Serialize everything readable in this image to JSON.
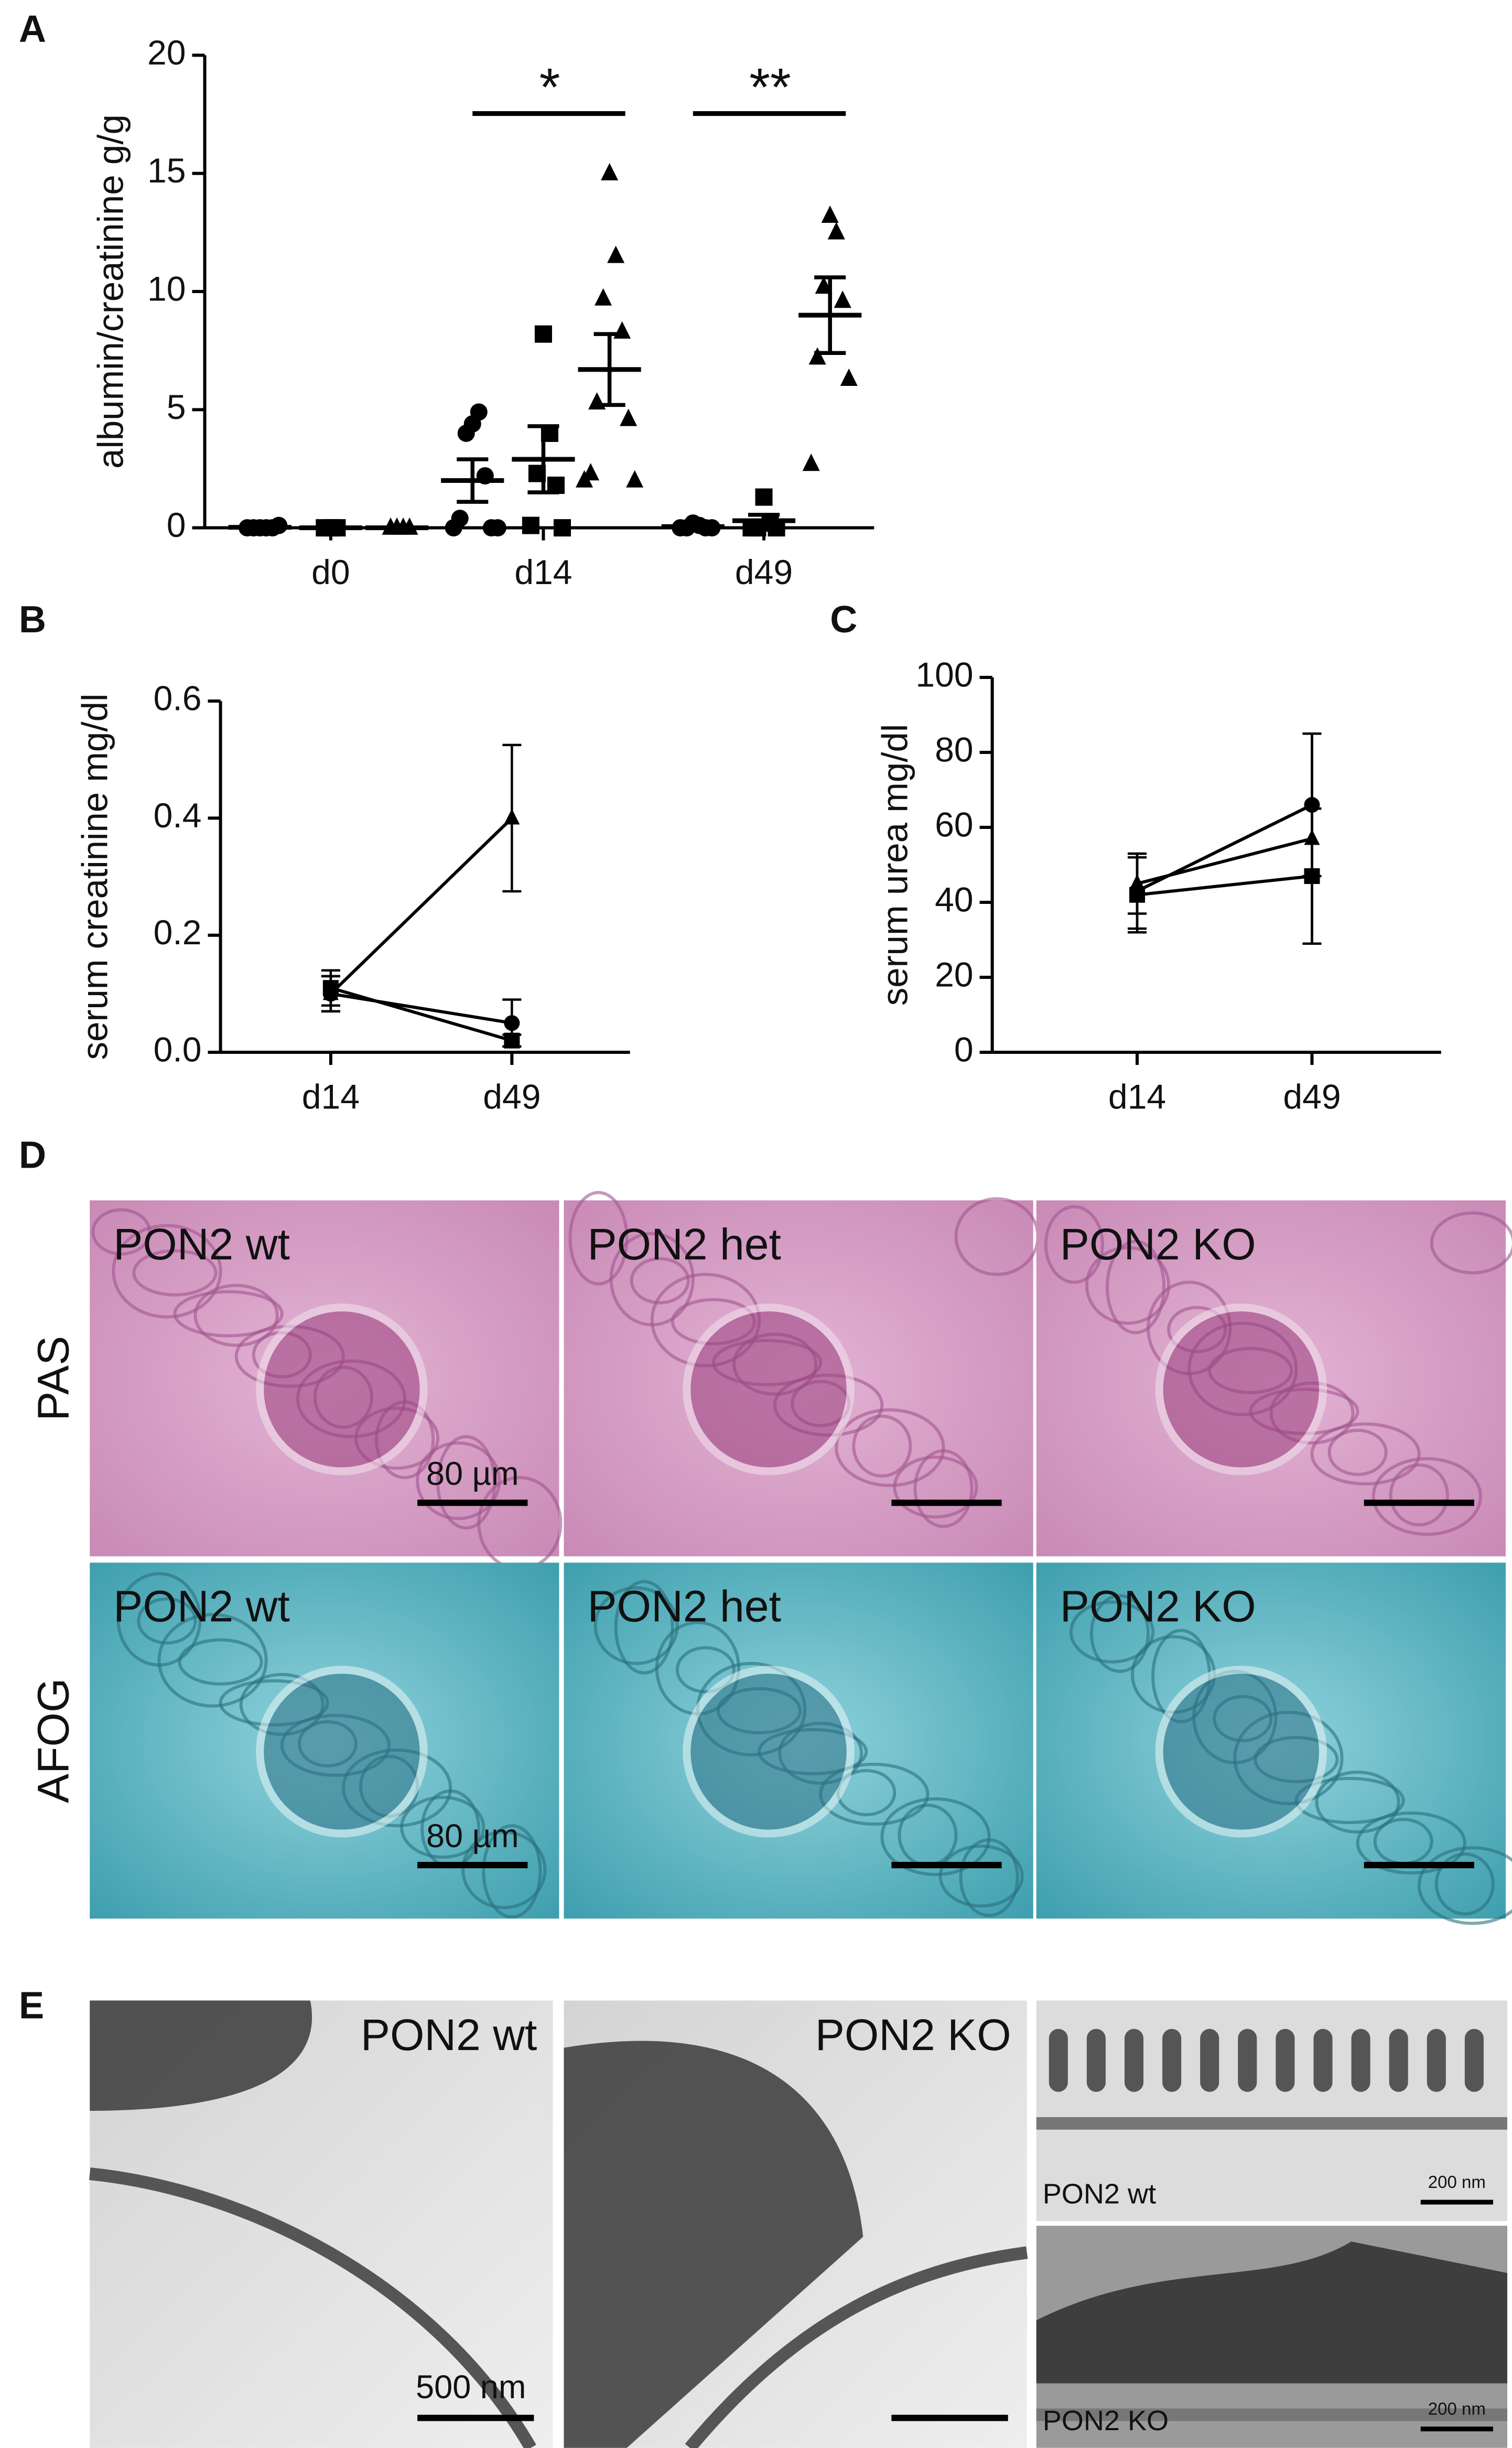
{
  "chart_data": [
    {
      "type": "dot",
      "panel": "A",
      "ylabel": "albumin/creatinine g/g",
      "categories": [
        "d0",
        "d14",
        "d49"
      ],
      "ylim": [
        0,
        20
      ],
      "yticks": [
        0,
        5,
        10,
        15,
        20
      ],
      "series": [
        {
          "marker": "circle",
          "color": "#000000",
          "points": [
            [
              0,
              0,
              0,
              0,
              0,
              0.1
            ],
            [
              4.4,
              4.9,
              4.0,
              2.2,
              0.4,
              0,
              0,
              0
            ],
            [
              0.2,
              0.1,
              0,
              0,
              0,
              0
            ]
          ],
          "mean": [
            0.02,
            2.0,
            0.05
          ],
          "sem": [
            0.02,
            0.9,
            0.05
          ]
        },
        {
          "marker": "square",
          "color": "#000000",
          "points": [
            [
              0,
              0,
              0
            ],
            [
              8.2,
              4.0,
              2.3,
              1.8,
              0.1,
              0
            ],
            [
              1.3,
              0.2,
              0,
              0,
              0
            ]
          ],
          "mean": [
            0,
            2.9,
            0.3
          ],
          "sem": [
            0,
            1.4,
            0.25
          ]
        },
        {
          "marker": "triangle",
          "color": "#000000",
          "points": [
            [
              0,
              0,
              0,
              0
            ],
            [
              15,
              11.5,
              9.7,
              8.3,
              5.3,
              4.6,
              2.3,
              2.0,
              2.0
            ],
            [
              13.2,
              12.5,
              10.2,
              9.6,
              7.2,
              6.3,
              2.7
            ]
          ],
          "mean": [
            0,
            6.7,
            9.0
          ],
          "sem": [
            0,
            1.5,
            1.6
          ]
        }
      ],
      "annotations": [
        {
          "label": "*",
          "category": "d14"
        },
        {
          "label": "**",
          "category": "d49"
        }
      ]
    },
    {
      "type": "line",
      "panel": "B",
      "ylabel": "serum creatinine mg/dl",
      "categories": [
        "d14",
        "d49"
      ],
      "ylim": [
        0,
        0.6
      ],
      "yticks": [
        {
          "value": 0,
          "label": "0.0"
        },
        0.2,
        0.4,
        0.6
      ],
      "series": [
        {
          "marker": "circle",
          "color": "#000000",
          "values": [
            0.1,
            0.05
          ],
          "errors": [
            0.03,
            0.04
          ]
        },
        {
          "marker": "square",
          "color": "#000000",
          "values": [
            0.11,
            0.02
          ],
          "errors": [
            0.03,
            0.01
          ]
        },
        {
          "marker": "triangle",
          "color": "#000000",
          "values": [
            0.1,
            0.4
          ],
          "errors": [
            0.03,
            0.125
          ]
        }
      ]
    },
    {
      "type": "line",
      "panel": "C",
      "ylabel": "serum urea mg/dl",
      "categories": [
        "d14",
        "d49"
      ],
      "ylim": [
        0,
        100
      ],
      "yticks": [
        0,
        20,
        40,
        60,
        80,
        100
      ],
      "series": [
        {
          "marker": "circle",
          "color": "#000000",
          "values": [
            43,
            66
          ],
          "errors": [
            10,
            19
          ]
        },
        {
          "marker": "square",
          "color": "#000000",
          "values": [
            42,
            47
          ],
          "errors": [
            10,
            18
          ]
        },
        {
          "marker": "triangle",
          "color": "#000000",
          "values": [
            45,
            57
          ],
          "errors": [
            8,
            28
          ]
        }
      ]
    }
  ],
  "histology": {
    "panel": "D",
    "rows": [
      "PAS",
      "AFOG"
    ],
    "columns": [
      "PON2 wt",
      "PON2 het",
      "PON2 KO"
    ],
    "scale_bar": "80 µm"
  },
  "electron_microscopy": {
    "panel": "E",
    "large": [
      "PON2 wt",
      "PON2 KO"
    ],
    "large_scale_bar": "500 nm",
    "small": [
      "PON2 wt",
      "PON2 KO"
    ],
    "small_scale_bar": "200 nm"
  }
}
